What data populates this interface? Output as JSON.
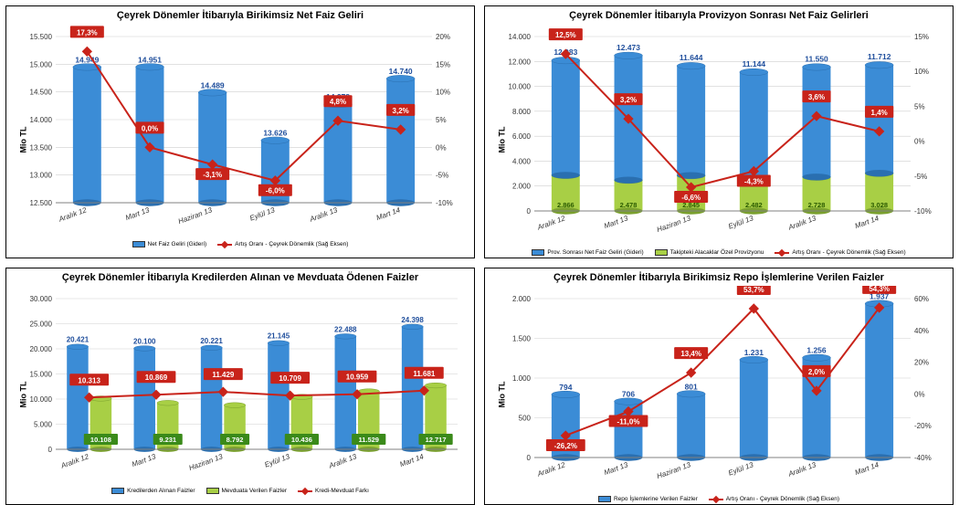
{
  "categories": [
    "Aralık 12",
    "Mart 13",
    "Haziran 13",
    "Eylül 13",
    "Aralık 13",
    "Mart 14"
  ],
  "colors": {
    "bar_blue": "#3b8cd6",
    "bar_blue_dark": "#2a6fb0",
    "bar_green": "#a8cf45",
    "bar_green_dark": "#7aa02e",
    "line_red": "#c8231a",
    "label_box": "#c8231a",
    "data_label": "#1f4e9c",
    "grid": "#cfcfcf",
    "axis": "#808080",
    "text": "#000000",
    "bg": "#ffffff"
  },
  "font": {
    "title": 11,
    "axis": 8,
    "data_label": 8.5,
    "legend": 6.5
  },
  "chart1": {
    "title": "Çeyrek Dönemler İtibarıyla Birikimsiz Net Faiz Geliri",
    "type": "bar+line",
    "y_left": {
      "min": 12500,
      "max": 15500,
      "step": 500,
      "fmt": "thousand_dot",
      "label": "Mio TL"
    },
    "y_right": {
      "min": -10,
      "max": 20,
      "step": 5,
      "fmt": "percent"
    },
    "bars": [
      {
        "values": [
          14949,
          14951,
          14489,
          13626,
          14278,
          14740
        ],
        "color": "bar_blue",
        "labels": [
          "14.949",
          "14.951",
          "14.489",
          "13.626",
          "14.278",
          "14.740"
        ],
        "label_above": true
      }
    ],
    "line": {
      "values_pct": [
        17.3,
        0.0,
        -3.1,
        -6.0,
        4.8,
        3.2
      ],
      "labels": [
        "17,3%",
        "0,0%",
        "-3,1%",
        "-6,0%",
        "4,8%",
        "3,2%"
      ],
      "color": "line_red"
    },
    "legend": [
      {
        "type": "bar",
        "color": "bar_blue",
        "text": "Net Faiz Geliri (Gideri)"
      },
      {
        "type": "line",
        "color": "line_red",
        "text": "Artış Oranı - Çeyrek Dönemlik (Sağ Eksen)"
      }
    ]
  },
  "chart2": {
    "title": "Çeyrek Dönemler İtibarıyla Provizyon Sonrası Net Faiz Gelirleri",
    "type": "stacked_bar+line",
    "y_left": {
      "min": 0,
      "max": 14000,
      "step": 2000,
      "fmt": "thousand_dot",
      "label": "Mio TL"
    },
    "y_right": {
      "min": -10,
      "max": 15,
      "step": 5,
      "fmt": "percent"
    },
    "bars": [
      {
        "values": [
          2866,
          2478,
          2845,
          2482,
          2728,
          3028
        ],
        "color": "bar_green",
        "labels": [
          "2.866",
          "2.478",
          "2.845",
          "2.482",
          "2.728",
          "3.028"
        ],
        "label_inside": true
      },
      {
        "values": [
          12083,
          12473,
          11644,
          11144,
          11550,
          11712
        ],
        "color": "bar_blue",
        "labels": [
          "12.083",
          "12.473",
          "11.644",
          "11.144",
          "11.550",
          "11.712"
        ],
        "label_above": true,
        "totals": [
          12083,
          12473,
          11644,
          11144,
          11550,
          11712
        ]
      }
    ],
    "stacked_totals": [
      12083,
      12473,
      11644,
      11144,
      11550,
      11712
    ],
    "line": {
      "values_pct": [
        12.5,
        3.2,
        -6.6,
        -4.3,
        3.6,
        1.4
      ],
      "labels": [
        "12,5%",
        "3,2%",
        "-6,6%",
        "-4,3%",
        "3,6%",
        "1,4%"
      ],
      "color": "line_red"
    },
    "legend": [
      {
        "type": "bar",
        "color": "bar_blue",
        "text": "Prov. Sonrası Net Faiz Geliri  (Gideri)"
      },
      {
        "type": "bar",
        "color": "bar_green",
        "text": "Takipteki Alacaklar Özel Provizyonu"
      },
      {
        "type": "line",
        "color": "line_red",
        "text": "Artış Oranı - Çeyrek Dönemlik (Sağ Eksen)"
      }
    ]
  },
  "chart3": {
    "title": "Çeyrek Dönemler İtibarıyla Kredilerden Alınan ve Mevduata Ödenen Faizler",
    "type": "grouped_bar+line",
    "y_left": {
      "min": 0,
      "max": 30000,
      "step": 5000,
      "fmt": "thousand_dot",
      "label": "Mio TL"
    },
    "y_right": null,
    "bars": [
      {
        "values": [
          20421,
          20100,
          20221,
          21145,
          22488,
          24398
        ],
        "color": "bar_blue",
        "labels": [
          "20.421",
          "20.100",
          "20.221",
          "21.145",
          "22.488",
          "24.398"
        ],
        "label_above": true
      },
      {
        "values": [
          10108,
          9231,
          8792,
          10436,
          11529,
          12717
        ],
        "color": "bar_green",
        "labels": [
          "10.108",
          "9.231",
          "8.792",
          "10.436",
          "11.529",
          "12.717"
        ],
        "label_inside_box": true
      }
    ],
    "line": {
      "values_left": [
        10313,
        10869,
        11429,
        10709,
        10959,
        11681
      ],
      "labels": [
        "10.313",
        "10.869",
        "11.429",
        "10.709",
        "10.959",
        "11.681"
      ],
      "color": "line_red",
      "label_box": true
    },
    "legend": [
      {
        "type": "bar",
        "color": "bar_blue",
        "text": "Kredilerden Alınan Faizler"
      },
      {
        "type": "bar",
        "color": "bar_green",
        "text": "Mevduata Verilen Faizler"
      },
      {
        "type": "line",
        "color": "line_red",
        "text": "Kredi-Mevduat Farkı"
      }
    ]
  },
  "chart4": {
    "title": "Çeyrek Dönemler İtibarıyla Birikimsiz Repo İşlemlerine Verilen Faizler",
    "type": "bar+line",
    "y_left": {
      "min": 0,
      "max": 2000,
      "step": 500,
      "fmt": "thousand_dot",
      "label": "Mio TL"
    },
    "y_right": {
      "min": -40,
      "max": 60,
      "step": 20,
      "fmt": "percent"
    },
    "bars": [
      {
        "values": [
          794,
          706,
          801,
          1231,
          1256,
          1937
        ],
        "color": "bar_blue",
        "labels": [
          "794",
          "706",
          "801",
          "1.231",
          "1.256",
          "1.937"
        ],
        "label_above": true
      }
    ],
    "line": {
      "values_pct": [
        -26.2,
        -11.0,
        13.4,
        53.7,
        2.0,
        54.3
      ],
      "labels": [
        "-26,2%",
        "-11,0%",
        "13,4%",
        "53,7%",
        "2,0%",
        "54,3%"
      ],
      "color": "line_red"
    },
    "legend": [
      {
        "type": "bar",
        "color": "bar_blue",
        "text": "Repo İşlemlerine Verilen Faizler"
      },
      {
        "type": "line",
        "color": "line_red",
        "text": "Artış Oranı - Çeyrek Dönemlik (Sağ Eksen)"
      }
    ]
  }
}
